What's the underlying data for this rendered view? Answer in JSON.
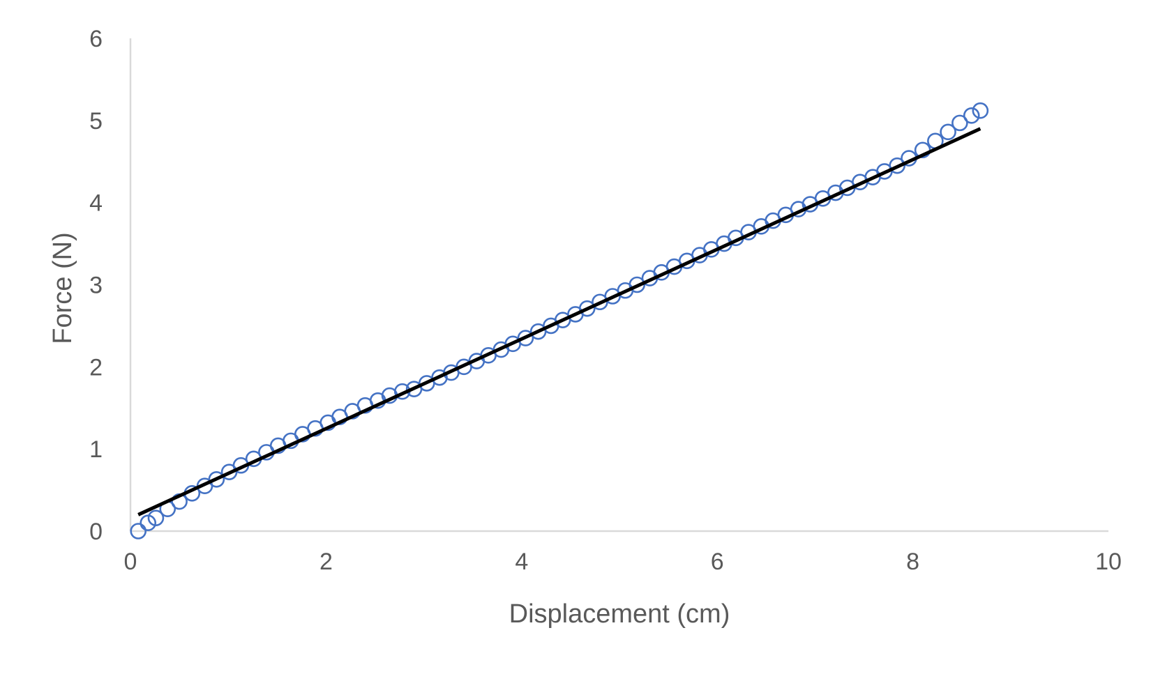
{
  "chart_data": {
    "type": "scatter",
    "title": "",
    "xlabel": "Displacement (cm)",
    "ylabel": "Force (N)",
    "xlim": [
      0,
      10
    ],
    "ylim": [
      0,
      6
    ],
    "xticks": [
      0,
      2,
      4,
      6,
      8,
      10
    ],
    "yticks": [
      0,
      1,
      2,
      3,
      4,
      5,
      6
    ],
    "grid": false,
    "legend": "none",
    "colors": {
      "marker": "#4472c4",
      "trendline": "#000000",
      "axis": "#d9d9d9",
      "text": "#595959"
    },
    "series": [
      {
        "marker": "circle-open",
        "x": [
          0.08,
          0.18,
          0.26,
          0.38,
          0.5,
          0.63,
          0.76,
          0.88,
          1.01,
          1.13,
          1.26,
          1.39,
          1.51,
          1.64,
          1.76,
          1.89,
          2.02,
          2.14,
          2.27,
          2.4,
          2.53,
          2.65,
          2.78,
          2.9,
          3.03,
          3.16,
          3.28,
          3.41,
          3.54,
          3.66,
          3.79,
          3.91,
          4.04,
          4.17,
          4.3,
          4.42,
          4.55,
          4.67,
          4.8,
          4.93,
          5.06,
          5.18,
          5.31,
          5.43,
          5.56,
          5.69,
          5.82,
          5.94,
          6.07,
          6.19,
          6.32,
          6.45,
          6.57,
          6.7,
          6.83,
          6.95,
          7.08,
          7.21,
          7.33,
          7.46,
          7.59,
          7.71,
          7.84,
          7.96,
          8.1,
          8.23,
          8.36,
          8.48,
          8.6,
          8.69
        ],
        "y": [
          0.0,
          0.1,
          0.16,
          0.27,
          0.36,
          0.46,
          0.55,
          0.63,
          0.72,
          0.8,
          0.88,
          0.96,
          1.04,
          1.1,
          1.18,
          1.25,
          1.32,
          1.39,
          1.46,
          1.53,
          1.59,
          1.65,
          1.7,
          1.73,
          1.8,
          1.87,
          1.93,
          2.0,
          2.07,
          2.14,
          2.21,
          2.28,
          2.35,
          2.43,
          2.5,
          2.57,
          2.64,
          2.71,
          2.79,
          2.86,
          2.93,
          3.0,
          3.08,
          3.15,
          3.22,
          3.29,
          3.36,
          3.43,
          3.5,
          3.57,
          3.64,
          3.71,
          3.78,
          3.85,
          3.92,
          3.98,
          4.05,
          4.12,
          4.18,
          4.25,
          4.31,
          4.38,
          4.45,
          4.54,
          4.64,
          4.75,
          4.86,
          4.97,
          5.06,
          5.12
        ]
      }
    ],
    "trendline": {
      "type": "linear",
      "x": [
        0.08,
        8.69
      ],
      "y": [
        0.2,
        4.9
      ]
    }
  }
}
